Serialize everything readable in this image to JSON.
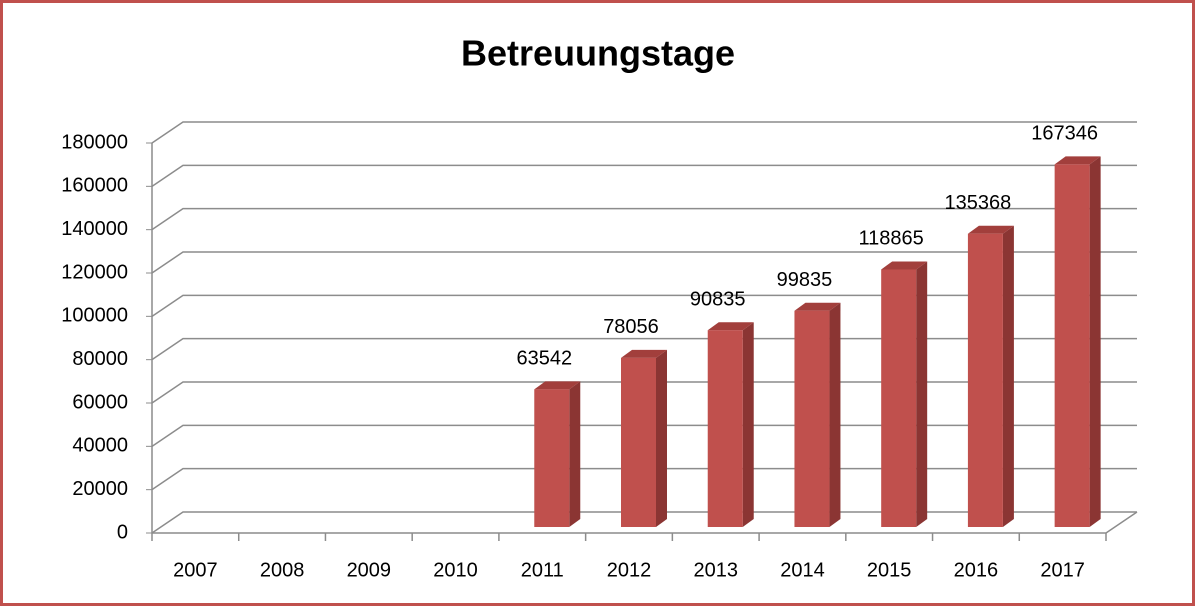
{
  "chart_data": {
    "type": "bar3d",
    "title": "Betreuungstage",
    "categories": [
      "2007",
      "2008",
      "2009",
      "2010",
      "2011",
      "2012",
      "2013",
      "2014",
      "2015",
      "2016",
      "2017"
    ],
    "values": [
      null,
      null,
      null,
      null,
      63542,
      78056,
      90835,
      99835,
      118865,
      135368,
      167346
    ],
    "color": "#c0504d",
    "ylim": [
      0,
      180000
    ],
    "yticks": [
      0,
      20000,
      40000,
      60000,
      80000,
      100000,
      120000,
      140000,
      160000,
      180000
    ],
    "grid": true
  }
}
